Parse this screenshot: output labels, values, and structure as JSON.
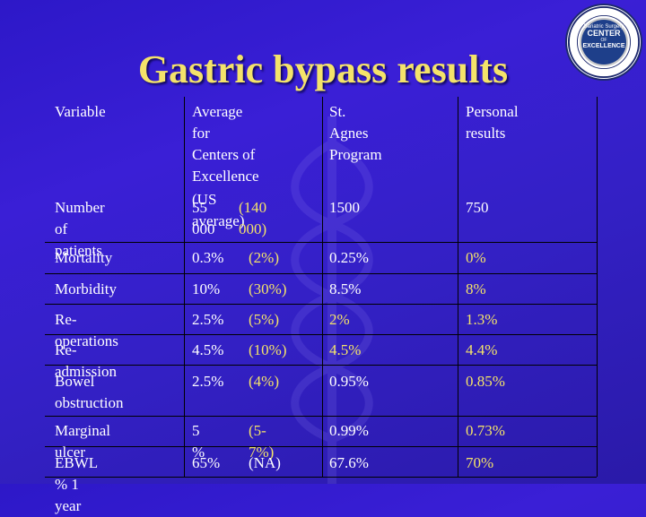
{
  "title": "Gastric bypass results",
  "seal": {
    "ring_text": "AMERICAN SOCIETY FOR BARIATRIC SURGERY · SURGICAL REVIEW CORPORATION",
    "line1": "Bariatric Surgery",
    "line2": "CENTER",
    "line3": "OF",
    "line4": "EXCELLENCE"
  },
  "headers": {
    "variable": "Variable",
    "average": [
      "Average for",
      "Centers of",
      "Excellence",
      "(US average)"
    ],
    "stagnes": [
      "St. Agnes",
      "Program"
    ],
    "personal": "Personal results"
  },
  "rows": [
    {
      "variable": [
        "Number of",
        "patients"
      ],
      "avg": "55 000",
      "us": "(140 000)",
      "stagnes": "1500",
      "personal": "750"
    },
    {
      "variable": [
        "Mortality"
      ],
      "avg": "0.3%",
      "us": "(2%)",
      "stagnes": "0.25%",
      "personal": "0%"
    },
    {
      "variable": [
        "Morbidity"
      ],
      "avg": "10%",
      "us": "(30%)",
      "stagnes": "8.5%",
      "personal": "8%"
    },
    {
      "variable": [
        "Re-operations"
      ],
      "avg": "2.5%",
      "us": "(5%)",
      "stagnes": "2%",
      "personal": "1.3%"
    },
    {
      "variable": [
        "Re-admission"
      ],
      "avg": "4.5%",
      "us": "(10%)",
      "stagnes": "4.5%",
      "personal": "4.4%"
    },
    {
      "variable": [
        "Bowel",
        "obstruction"
      ],
      "avg": "2.5%",
      "us": "(4%)",
      "stagnes": "0.95%",
      "personal": "0.85%"
    },
    {
      "variable": [
        "Marginal ulcer"
      ],
      "avg": "5 %",
      "us": "(5-7%)",
      "stagnes": "0.99%",
      "personal": "0.73%"
    },
    {
      "variable": [
        "EBWL % 1 year"
      ],
      "avg": "65%",
      "us": "(NA)",
      "stagnes": "67.6%",
      "personal": "70%"
    }
  ],
  "colors": {
    "background": "#3a1fd6",
    "title": "#f4e36a",
    "highlight": "#f4e36a",
    "text": "#ffffff"
  }
}
